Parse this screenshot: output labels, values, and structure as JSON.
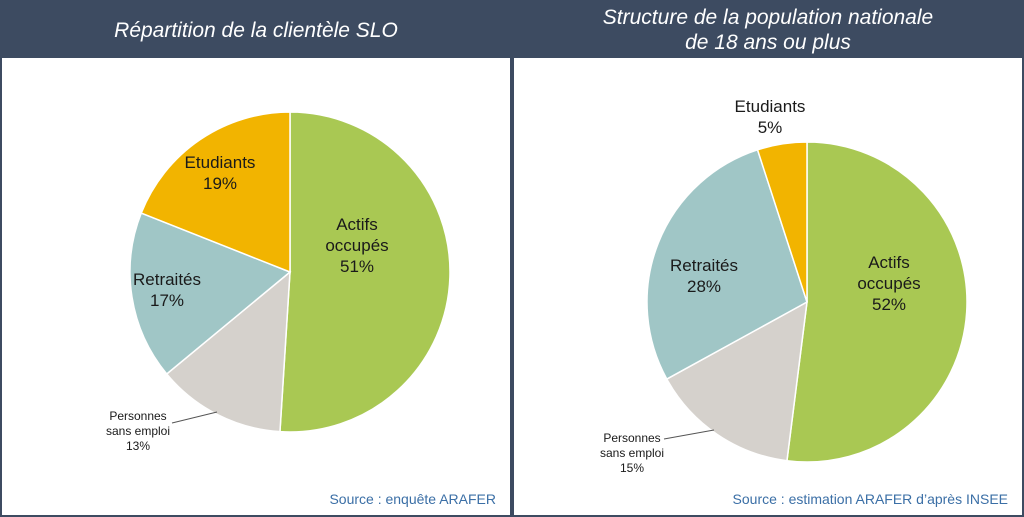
{
  "colors": {
    "header_bg": "#3d4b61",
    "actifs": "#a9c853",
    "sans_emploi": "#d5d1cc",
    "retraites": "#a0c6c6",
    "etudiants": "#f2b400",
    "source_text": "#3b6fa6"
  },
  "chart_data": [
    {
      "type": "pie",
      "title": "Répartition de la clientèle SLO",
      "source": "Source : enquête ARAFER",
      "slices": [
        {
          "key": "actifs",
          "label_lines": [
            "Actifs",
            "occupés"
          ],
          "pct_label": "51%",
          "value": 51
        },
        {
          "key": "sans_emploi",
          "label_lines": [
            "Personnes",
            "sans emploi"
          ],
          "pct_label": "13%",
          "value": 13
        },
        {
          "key": "retraites",
          "label_lines": [
            "Retraités"
          ],
          "pct_label": "17%",
          "value": 17
        },
        {
          "key": "etudiants",
          "label_lines": [
            "Etudiants"
          ],
          "pct_label": "19%",
          "value": 19
        }
      ]
    },
    {
      "type": "pie",
      "title_lines": [
        "Structure de la population nationale",
        "de 18 ans ou plus"
      ],
      "source": "Source : estimation ARAFER d’après INSEE",
      "slices": [
        {
          "key": "actifs",
          "label_lines": [
            "Actifs",
            "occupés"
          ],
          "pct_label": "52%",
          "value": 52
        },
        {
          "key": "sans_emploi",
          "label_lines": [
            "Personnes",
            "sans emploi"
          ],
          "pct_label": "15%",
          "value": 15
        },
        {
          "key": "retraites",
          "label_lines": [
            "Retraités"
          ],
          "pct_label": "28%",
          "value": 28
        },
        {
          "key": "etudiants",
          "label_lines": [
            "Etudiants"
          ],
          "pct_label": "5%",
          "value": 5
        }
      ]
    }
  ]
}
